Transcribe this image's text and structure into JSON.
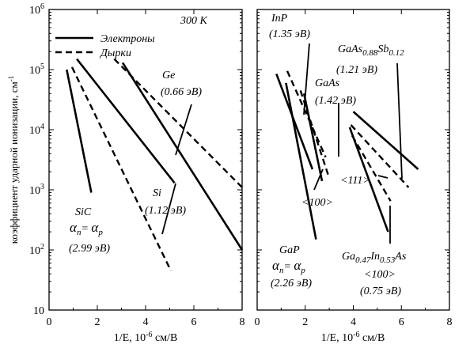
{
  "chart_data": [
    {
      "type": "line",
      "xlabel": "1/E, 10<sup>-6</sup> см/В",
      "xlabel_text": "1/E, 10-6 см/В",
      "ylabel": "коэффициент ударной ионизации, см-1",
      "xlim": [
        0,
        8
      ],
      "ylim": [
        10,
        1000000
      ],
      "yscale": "log",
      "x_ticks": [
        "0",
        "2",
        "4",
        "6",
        "8"
      ],
      "y_ticks": [
        "10",
        "10²",
        "10³",
        "10⁴",
        "10⁵",
        "10⁶"
      ],
      "temperature_label": "300 K",
      "legend": [
        {
          "label": "Электроны",
          "style": "solid"
        },
        {
          "label": "Дырки",
          "style": "dashed"
        }
      ],
      "series": [
        {
          "material": "SiC",
          "carrier": "electrons",
          "style": "solid",
          "x": [
            0.73,
            1.75
          ],
          "y": [
            100000,
            900
          ]
        },
        {
          "material": "SiC",
          "carrier": "holes",
          "style": "dashed",
          "x": [
            0.95,
            5.05
          ],
          "y": [
            110000,
            45
          ]
        },
        {
          "material": "Si",
          "carrier": "electrons",
          "style": "solid",
          "x": [
            1.15,
            5.2
          ],
          "y": [
            150000,
            1300
          ]
        },
        {
          "material": "Si",
          "carrier": "holes",
          "style": "dashed",
          "x": [
            2.7,
            8.0
          ],
          "y": [
            150000,
            1100
          ]
        },
        {
          "material": "Ge",
          "carrier": "electrons",
          "style": "solid",
          "x": [
            3.05,
            8.0
          ],
          "y": [
            130000,
            100
          ]
        }
      ],
      "annotations": [
        {
          "text": "Ge",
          "sub": "(0.66 эВ)"
        },
        {
          "text": "Si",
          "sub": "(1.12 эВ)"
        },
        {
          "text": "SiC",
          "line2": "αn= αp",
          "sub": "(2.99 эВ)"
        }
      ]
    },
    {
      "type": "line",
      "xlabel": "1/E, 10<sup>-6</sup> см/В",
      "xlabel_text": "1/E, 10-6 см/В",
      "xlim": [
        0,
        8
      ],
      "ylim": [
        10,
        1000000
      ],
      "yscale": "log",
      "x_ticks": [
        "0",
        "2",
        "4",
        "6",
        "8"
      ],
      "series": [
        {
          "material": "InP",
          "carrier": "electrons",
          "style": "solid",
          "x": [
            0.8,
            2.3
          ],
          "y": [
            85000,
            2200
          ]
        },
        {
          "material": "InP",
          "carrier": "holes",
          "style": "dashed",
          "x": [
            1.25,
            2.85
          ],
          "y": [
            95000,
            3500
          ]
        },
        {
          "material": "GaP",
          "carrier": "electrons",
          "style": "solid",
          "x": [
            1.2,
            2.45
          ],
          "y": [
            60000,
            150
          ]
        },
        {
          "material": "GaAs",
          "carrier": "electrons",
          "style": "solid",
          "x": [
            1.95,
            2.7
          ],
          "y": [
            40000,
            1400
          ]
        },
        {
          "material": "GaAs",
          "carrier": "holes",
          "style": "dashed",
          "x": [
            1.8,
            2.95
          ],
          "y": [
            45000,
            1800
          ]
        },
        {
          "material": "GaAs0.88Sb0.12",
          "carrier": "electrons",
          "style": "solid",
          "x": [
            4.0,
            6.7
          ],
          "y": [
            20000,
            2200
          ]
        },
        {
          "material": "GaAs0.88Sb0.12",
          "carrier": "holes",
          "style": "dashed",
          "x": [
            3.9,
            6.3
          ],
          "y": [
            12000,
            1100
          ]
        },
        {
          "material": "Ga0.47In0.53As",
          "carrier": "electrons",
          "style": "solid",
          "x": [
            3.85,
            5.45
          ],
          "y": [
            11000,
            200
          ]
        },
        {
          "material": "Ga0.47In0.53As",
          "carrier": "holes",
          "style": "dashed",
          "x": [
            3.95,
            5.55
          ],
          "y": [
            8000,
            650
          ]
        }
      ],
      "annotations": [
        {
          "text": "InP",
          "sub": "(1.35 эВ)"
        },
        {
          "text": "GaAs0.88Sb0.12",
          "sub": "(1.21 эВ)"
        },
        {
          "text": "GaAs",
          "sub": "(1.42 эВ)"
        },
        {
          "text": "<111>"
        },
        {
          "text": "<100>"
        },
        {
          "text": "GaP",
          "line2": "αn= αp",
          "sub": "(2.26 эВ)"
        },
        {
          "text": "Ga0.47In0.53As",
          "line2": "<100>",
          "sub": "(0.75 эВ)"
        }
      ]
    }
  ],
  "labels": {
    "temp": "300 K",
    "legend_electrons": "Электроны",
    "legend_holes": "Дырки",
    "ylabel": "коэффициент ударной ионизации, см",
    "ylabel_sup": "-1",
    "xlabel_main": "1/E, 10",
    "xlabel_sup": "-6",
    "xlabel_unit": " см/В",
    "ge": "Ge",
    "ge_gap": "(0.66 эВ)",
    "si": "Si",
    "si_gap": "(1.12 эВ)",
    "sic": "SiC",
    "sic_gap": "(2.99 эВ)",
    "alpha": "α",
    "n": "n",
    "p": "p",
    "eq": "= ",
    "inp": "InP",
    "inp_gap": "(1.35 эВ)",
    "gaassb_a": "GaAs",
    "gaassb_s1": "0.88",
    "gaassb_b": "Sb",
    "gaassb_s2": "0.12",
    "gaassb_gap": "(1.21 эВ)",
    "gaas": "GaAs",
    "gaas_gap": "(1.42 эВ)",
    "dir111": "<111>",
    "dir100": "<100>",
    "gap_mat": "GaP",
    "gap_gap": "(2.26 эВ)",
    "gainas_a": "Ga",
    "gainas_s1": "0.47",
    "gainas_b": "In",
    "gainas_s2": "0.53",
    "gainas_c": "As",
    "gainas_dir": "<100>",
    "gainas_gap": "(0.75 эВ)"
  }
}
